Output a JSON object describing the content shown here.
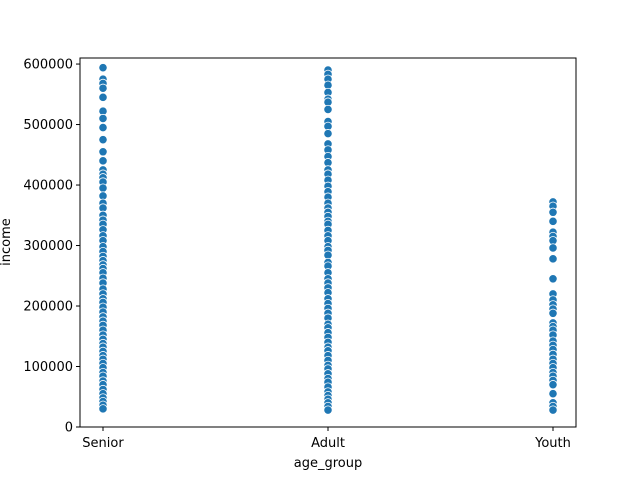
{
  "chart_data": {
    "type": "scatter",
    "xlabel": "age_group",
    "ylabel": "income",
    "categories": [
      "Senior",
      "Adult",
      "Youth"
    ],
    "ylim": [
      0,
      610000
    ],
    "y_ticks": [
      0,
      100000,
      200000,
      300000,
      400000,
      500000,
      600000
    ],
    "y_tick_labels": [
      "0",
      "100000",
      "200000",
      "300000",
      "400000",
      "500000",
      "600000"
    ],
    "grid": false,
    "legend": "none",
    "point_color": "#1f77b4",
    "point_edge_color": "#ffffff",
    "series": [
      {
        "category": "Senior",
        "values": [
          594000,
          575000,
          568000,
          560000,
          545000,
          522000,
          510000,
          495000,
          475000,
          455000,
          440000,
          425000,
          418000,
          412000,
          405000,
          395000,
          382000,
          370000,
          362000,
          350000,
          342000,
          335000,
          326000,
          316000,
          308000,
          298000,
          290000,
          282000,
          275000,
          268000,
          262000,
          255000,
          246000,
          238000,
          228000,
          220000,
          212000,
          206000,
          198000,
          190000,
          182000,
          175000,
          168000,
          160000,
          152000,
          145000,
          138000,
          132000,
          125000,
          118000,
          112000,
          105000,
          98000,
          90000,
          84000,
          76000,
          70000,
          62000,
          55000,
          48000,
          42000,
          36000,
          30000
        ]
      },
      {
        "category": "Adult",
        "values": [
          590000,
          583000,
          575000,
          565000,
          553000,
          542000,
          537000,
          525000,
          505000,
          497000,
          485000,
          468000,
          458000,
          447000,
          437000,
          425000,
          418000,
          408000,
          398000,
          389000,
          380000,
          370000,
          362000,
          355000,
          348000,
          340000,
          335000,
          325000,
          316000,
          308000,
          298000,
          292000,
          284000,
          272000,
          266000,
          255000,
          245000,
          238000,
          230000,
          222000,
          212000,
          204000,
          196000,
          188000,
          180000,
          170000,
          164000,
          156000,
          148000,
          140000,
          132000,
          126000,
          118000,
          110000,
          102000,
          96000,
          88000,
          80000,
          74000,
          66000,
          58000,
          52000,
          46000,
          40000,
          34000,
          28000
        ]
      },
      {
        "category": "Youth",
        "values": [
          372000,
          365000,
          355000,
          340000,
          322000,
          315000,
          308000,
          296000,
          278000,
          245000,
          220000,
          210000,
          202000,
          195000,
          188000,
          172000,
          166000,
          160000,
          152000,
          142000,
          135000,
          128000,
          120000,
          112000,
          105000,
          98000,
          90000,
          84000,
          77000,
          70000,
          55000,
          40000,
          34000,
          28000
        ]
      }
    ]
  }
}
